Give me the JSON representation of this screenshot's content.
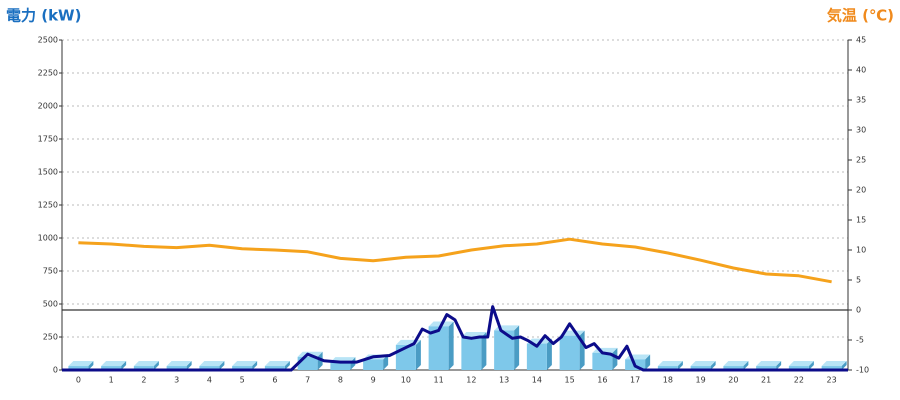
{
  "chart_data": {
    "type": "bar",
    "y_title": "電力 (kW)",
    "y2_title": "気温 (℃)",
    "y_title_color": "#1a6fc0",
    "y2_title_color": "#f08a1c",
    "categories": [
      "0",
      "1",
      "2",
      "3",
      "4",
      "5",
      "6",
      "7",
      "8",
      "9",
      "10",
      "11",
      "12",
      "13",
      "14",
      "15",
      "16",
      "17",
      "18",
      "19",
      "20",
      "21",
      "22",
      "23"
    ],
    "xlim": [
      -0.5,
      23.5
    ],
    "ylim": [
      0,
      2500
    ],
    "yticks": [
      0,
      250,
      500,
      750,
      1000,
      1250,
      1500,
      1750,
      2000,
      2250,
      2500
    ],
    "y2lim": [
      -10,
      45
    ],
    "y2ticks": [
      -10,
      -5,
      0,
      5,
      10,
      15,
      20,
      25,
      30,
      35,
      40,
      45
    ],
    "grid": true,
    "y2_zero_line": true,
    "series": [
      {
        "type": "bar",
        "color": "#7ec8ea",
        "values": [
          30,
          30,
          30,
          30,
          30,
          30,
          30,
          100,
          60,
          80,
          190,
          330,
          250,
          300,
          200,
          260,
          130,
          80,
          30,
          30,
          30,
          30,
          30,
          30
        ]
      },
      {
        "type": "line",
        "color": "#0c0c8a",
        "x": [
          -0.5,
          0,
          1,
          2,
          3,
          4,
          5,
          6,
          6.5,
          7,
          7.5,
          8,
          8.5,
          9,
          9.5,
          10,
          10.25,
          10.5,
          10.75,
          11,
          11.25,
          11.5,
          11.75,
          12,
          12.25,
          12.5,
          12.65,
          12.9,
          13.25,
          13.5,
          13.75,
          14,
          14.25,
          14.5,
          14.75,
          15,
          15.25,
          15.5,
          15.75,
          16,
          16.25,
          16.5,
          16.75,
          17,
          17.25,
          18,
          19,
          20,
          21,
          22,
          23,
          23.5
        ],
        "values": [
          0,
          0,
          0,
          0,
          0,
          0,
          0,
          0,
          0,
          120,
          70,
          60,
          60,
          100,
          110,
          170,
          200,
          310,
          280,
          300,
          420,
          380,
          250,
          240,
          250,
          250,
          480,
          300,
          240,
          250,
          220,
          180,
          260,
          200,
          250,
          350,
          260,
          170,
          200,
          130,
          120,
          90,
          180,
          30,
          0,
          0,
          0,
          0,
          0,
          0,
          0,
          0
        ]
      },
      {
        "type": "line",
        "axis": "y2",
        "color": "#f5a21c",
        "values": [
          11.2,
          11,
          10.6,
          10.4,
          10.8,
          10.2,
          10,
          9.7,
          8.6,
          8.2,
          8.8,
          9,
          10,
          10.7,
          11,
          11.8,
          11,
          10.5,
          9.5,
          8.3,
          7,
          6,
          5.7,
          4.7
        ]
      }
    ]
  }
}
